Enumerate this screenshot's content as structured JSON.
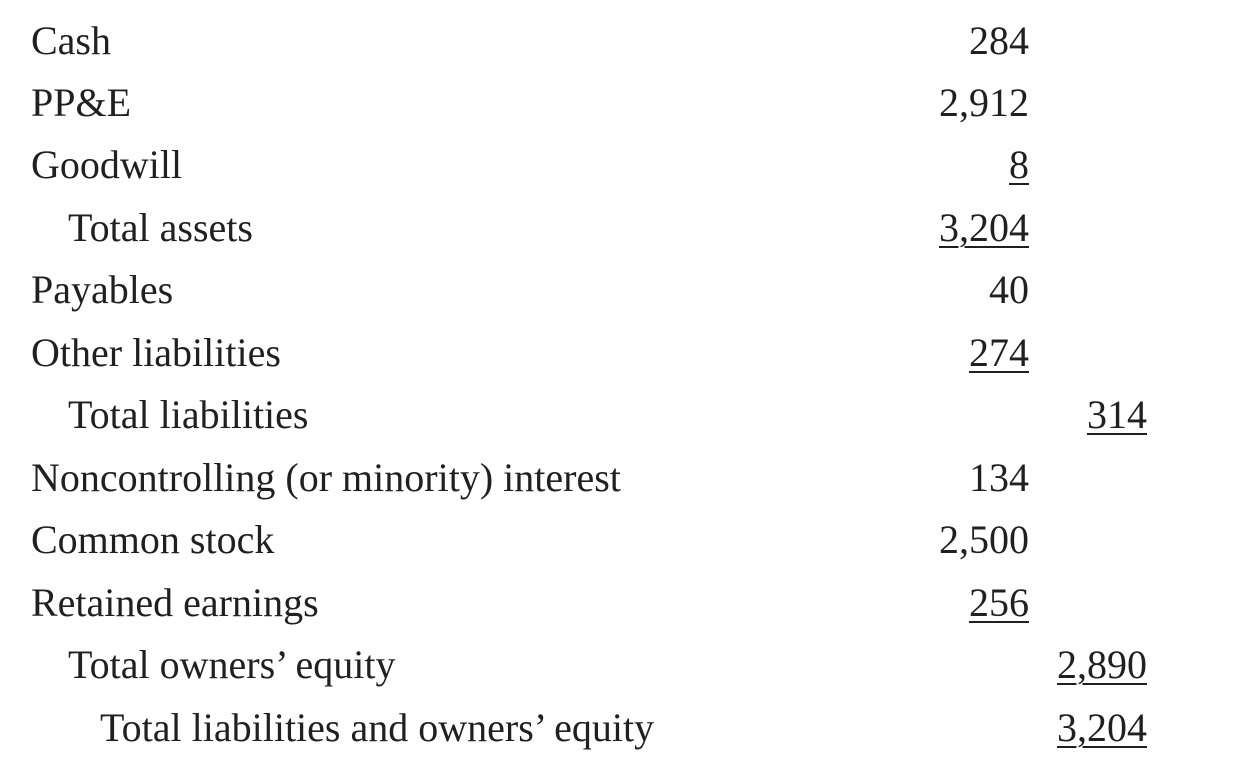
{
  "rows": [
    {
      "label": "Cash",
      "col1": "284",
      "col2": ""
    },
    {
      "label": "PP&E",
      "col1": "2,912",
      "col2": ""
    },
    {
      "label": "Goodwill",
      "col1": "8",
      "col2": ""
    },
    {
      "label": "Total assets",
      "col1": "3,204",
      "col2": ""
    },
    {
      "label": "Payables",
      "col1": "40",
      "col2": ""
    },
    {
      "label": "Other liabilities",
      "col1": "274",
      "col2": ""
    },
    {
      "label": "Total liabilities",
      "col1": "",
      "col2": "314"
    },
    {
      "label": "Noncontrolling (or minority) interest",
      "col1": "134",
      "col2": ""
    },
    {
      "label": "Common stock",
      "col1": "2,500",
      "col2": ""
    },
    {
      "label": "Retained earnings",
      "col1": "256",
      "col2": ""
    },
    {
      "label": "Total owners’ equity",
      "col1": "",
      "col2": "2,890"
    },
    {
      "label": "Total liabilities and owners’ equity",
      "col1": "",
      "col2": "3,204"
    }
  ]
}
